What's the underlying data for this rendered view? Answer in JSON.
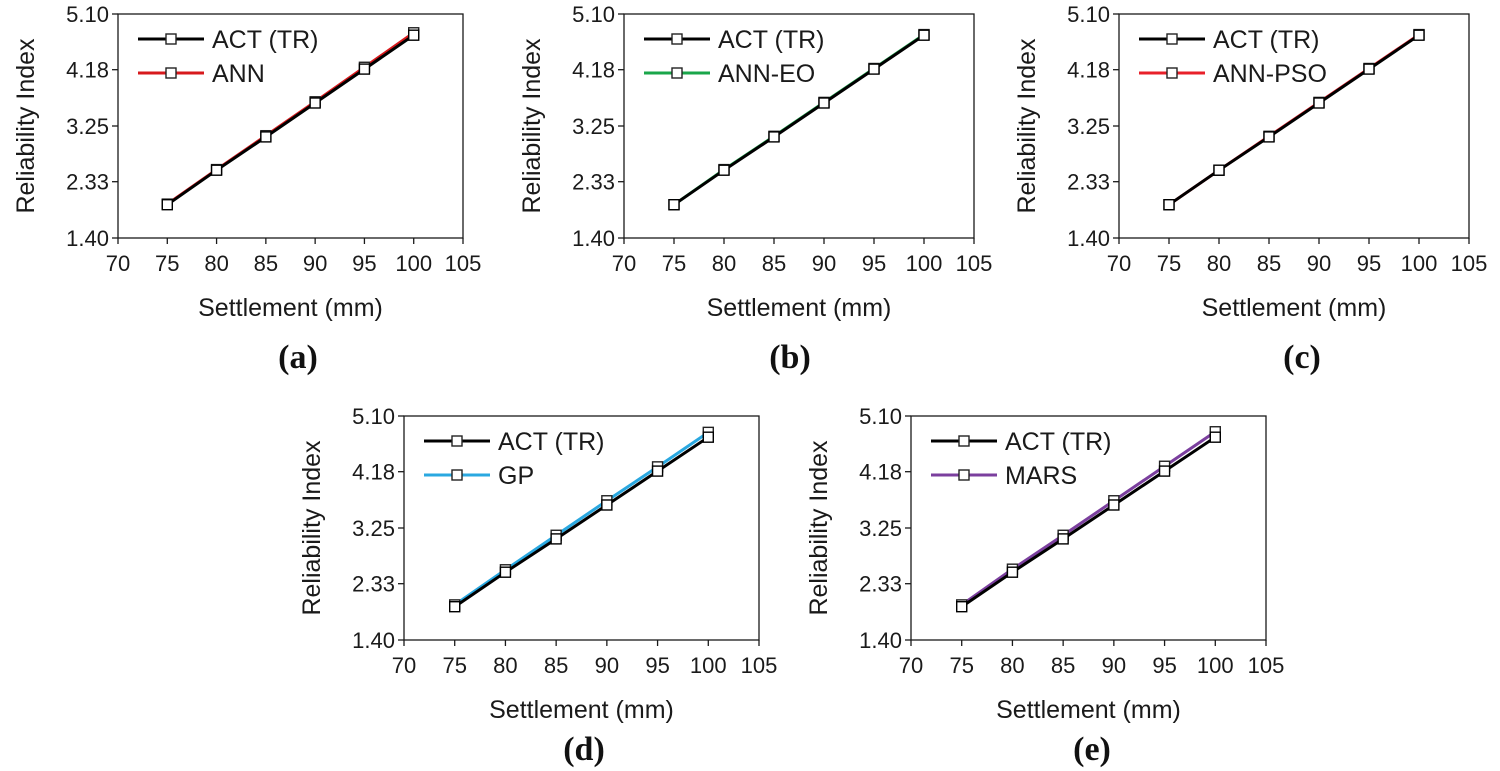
{
  "chart_data": [
    {
      "type": "line",
      "caption": "(a)",
      "xlabel": "Settlement (mm)",
      "ylabel": "Reliability Index",
      "xlim": [
        70,
        105
      ],
      "ylim": [
        1.4,
        5.1
      ],
      "xticks": [
        "70",
        "75",
        "80",
        "85",
        "90",
        "95",
        "100",
        "105"
      ],
      "yticks": [
        "1.40",
        "2.33",
        "3.25",
        "4.18",
        "5.10"
      ],
      "legend_position": "top-left",
      "x": [
        75,
        80,
        85,
        90,
        95,
        100
      ],
      "series": [
        {
          "name": "ACT (TR)",
          "color": "#000000",
          "values": [
            1.95,
            2.52,
            3.07,
            3.63,
            4.19,
            4.75
          ]
        },
        {
          "name": "ANN",
          "color": "#d7191c",
          "values": [
            1.96,
            2.53,
            3.09,
            3.65,
            4.22,
            4.79
          ]
        }
      ]
    },
    {
      "type": "line",
      "caption": "(b)",
      "xlabel": "Settlement (mm)",
      "ylabel": "Reliability Index",
      "xlim": [
        70,
        105
      ],
      "ylim": [
        1.4,
        5.1
      ],
      "xticks": [
        "70",
        "75",
        "80",
        "85",
        "90",
        "95",
        "100",
        "105"
      ],
      "yticks": [
        "1.40",
        "2.33",
        "3.25",
        "4.18",
        "5.10"
      ],
      "legend_position": "top-left",
      "x": [
        75,
        80,
        85,
        90,
        95,
        100
      ],
      "series": [
        {
          "name": "ACT (TR)",
          "color": "#000000",
          "values": [
            1.95,
            2.52,
            3.07,
            3.63,
            4.19,
            4.75
          ]
        },
        {
          "name": "ANN-EO",
          "color": "#1aa64a",
          "values": [
            1.95,
            2.53,
            3.08,
            3.64,
            4.2,
            4.76
          ]
        }
      ]
    },
    {
      "type": "line",
      "caption": "(c)",
      "xlabel": "Settlement (mm)",
      "ylabel": "Reliability Index",
      "xlim": [
        70,
        105
      ],
      "ylim": [
        1.4,
        5.1
      ],
      "xticks": [
        "70",
        "75",
        "80",
        "85",
        "90",
        "95",
        "100",
        "105"
      ],
      "yticks": [
        "1.40",
        "2.33",
        "3.25",
        "4.18",
        "5.10"
      ],
      "legend_position": "top-left",
      "x": [
        75,
        80,
        85,
        90,
        95,
        100
      ],
      "series": [
        {
          "name": "ACT (TR)",
          "color": "#000000",
          "values": [
            1.95,
            2.52,
            3.07,
            3.63,
            4.19,
            4.75
          ]
        },
        {
          "name": "ANN-PSO",
          "color": "#e8202a",
          "values": [
            1.95,
            2.52,
            3.08,
            3.64,
            4.2,
            4.76
          ]
        }
      ]
    },
    {
      "type": "line",
      "caption": "(d)",
      "xlabel": "Settlement (mm)",
      "ylabel": "Reliability Index",
      "xlim": [
        70,
        105
      ],
      "ylim": [
        1.4,
        5.1
      ],
      "xticks": [
        "70",
        "75",
        "80",
        "85",
        "90",
        "95",
        "100",
        "105"
      ],
      "yticks": [
        "1.40",
        "2.33",
        "3.25",
        "4.18",
        "5.10"
      ],
      "legend_position": "top-left",
      "x": [
        75,
        80,
        85,
        90,
        95,
        100
      ],
      "series": [
        {
          "name": "ACT (TR)",
          "color": "#000000",
          "values": [
            1.95,
            2.52,
            3.07,
            3.63,
            4.19,
            4.75
          ]
        },
        {
          "name": "GP",
          "color": "#2aa8e0",
          "values": [
            1.98,
            2.56,
            3.13,
            3.7,
            4.26,
            4.83
          ]
        }
      ]
    },
    {
      "type": "line",
      "caption": "(e)",
      "xlabel": "Settlement (mm)",
      "ylabel": "Reliability Index",
      "xlim": [
        70,
        105
      ],
      "ylim": [
        1.4,
        5.1
      ],
      "xticks": [
        "70",
        "75",
        "80",
        "85",
        "90",
        "95",
        "100",
        "105"
      ],
      "yticks": [
        "1.40",
        "2.33",
        "3.25",
        "4.18",
        "5.10"
      ],
      "legend_position": "top-left",
      "x": [
        75,
        80,
        85,
        90,
        95,
        100
      ],
      "series": [
        {
          "name": "ACT (TR)",
          "color": "#000000",
          "values": [
            1.95,
            2.52,
            3.07,
            3.63,
            4.19,
            4.75
          ]
        },
        {
          "name": "MARS",
          "color": "#7b3f9e",
          "values": [
            1.98,
            2.57,
            3.13,
            3.7,
            4.27,
            4.84
          ]
        }
      ]
    }
  ]
}
